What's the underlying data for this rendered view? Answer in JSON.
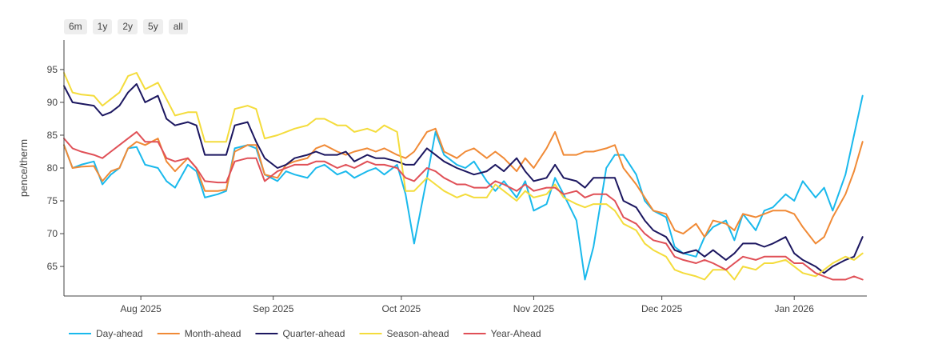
{
  "range_selector": [
    "6m",
    "1y",
    "2y",
    "5y",
    "all"
  ],
  "chart_data": {
    "type": "line",
    "ylabel": "pence/therm",
    "ylim": [
      60.5,
      99.5
    ],
    "yticks": [
      65,
      70,
      75,
      80,
      85,
      90,
      95
    ],
    "xlim": [
      "2025-07-14",
      "2026-01-18"
    ],
    "xticks": [
      {
        "date": "2025-08-01",
        "label": "Aug 2025"
      },
      {
        "date": "2025-09-01",
        "label": "Sep 2025"
      },
      {
        "date": "2025-10-01",
        "label": "Oct 2025"
      },
      {
        "date": "2025-11-01",
        "label": "Nov 2025"
      },
      {
        "date": "2025-12-01",
        "label": "Dec 2025"
      },
      {
        "date": "2026-01-01",
        "label": "Jan 2026"
      }
    ],
    "colors": {
      "Day-ahead": "#1ab9ec",
      "Month-ahead": "#f08a36",
      "Quarter-ahead": "#1c1760",
      "Season-ahead": "#f4dc3c",
      "Year-Ahead": "#e05057"
    },
    "x": [
      "2025-07-14",
      "2025-07-16",
      "2025-07-18",
      "2025-07-21",
      "2025-07-23",
      "2025-07-25",
      "2025-07-27",
      "2025-07-29",
      "2025-07-31",
      "2025-08-02",
      "2025-08-05",
      "2025-08-07",
      "2025-08-09",
      "2025-08-12",
      "2025-08-14",
      "2025-08-16",
      "2025-08-19",
      "2025-08-21",
      "2025-08-23",
      "2025-08-26",
      "2025-08-28",
      "2025-08-30",
      "2025-09-02",
      "2025-09-04",
      "2025-09-06",
      "2025-09-09",
      "2025-09-11",
      "2025-09-13",
      "2025-09-16",
      "2025-09-18",
      "2025-09-20",
      "2025-09-23",
      "2025-09-25",
      "2025-09-27",
      "2025-09-30",
      "2025-10-02",
      "2025-10-04",
      "2025-10-07",
      "2025-10-09",
      "2025-10-11",
      "2025-10-14",
      "2025-10-16",
      "2025-10-18",
      "2025-10-21",
      "2025-10-23",
      "2025-10-25",
      "2025-10-28",
      "2025-10-30",
      "2025-11-01",
      "2025-11-04",
      "2025-11-06",
      "2025-11-08",
      "2025-11-11",
      "2025-11-13",
      "2025-11-15",
      "2025-11-18",
      "2025-11-20",
      "2025-11-22",
      "2025-11-25",
      "2025-11-27",
      "2025-11-29",
      "2025-12-02",
      "2025-12-04",
      "2025-12-06",
      "2025-12-09",
      "2025-12-11",
      "2025-12-13",
      "2025-12-16",
      "2025-12-18",
      "2025-12-20",
      "2025-12-23",
      "2025-12-25",
      "2025-12-27",
      "2025-12-30",
      "2026-01-01",
      "2026-01-03",
      "2026-01-06",
      "2026-01-08",
      "2026-01-10",
      "2026-01-13",
      "2026-01-15",
      "2026-01-17"
    ],
    "series": [
      {
        "name": "Day-ahead",
        "values": [
          83.5,
          80.0,
          80.5,
          81.0,
          77.5,
          79.0,
          80.0,
          83.0,
          83.2,
          80.5,
          80.0,
          78.0,
          77.0,
          80.5,
          79.5,
          75.5,
          76.0,
          76.5,
          83.0,
          83.5,
          83.0,
          79.0,
          78.0,
          79.5,
          79.0,
          78.5,
          80.0,
          80.5,
          79.0,
          79.5,
          78.5,
          79.5,
          80.0,
          79.0,
          80.5,
          76.0,
          68.5,
          78.5,
          85.5,
          82.0,
          80.5,
          80.0,
          81.0,
          78.0,
          76.5,
          78.0,
          75.5,
          78.0,
          73.5,
          74.5,
          78.5,
          76.0,
          72.0,
          63.0,
          68.0,
          80.0,
          82.0,
          82.0,
          79.0,
          75.0,
          73.5,
          72.5,
          68.0,
          67.0,
          66.5,
          69.5,
          71.0,
          72.0,
          69.0,
          73.0,
          70.5,
          73.5,
          74.0,
          76.0,
          75.0,
          78.0,
          75.5,
          77.0,
          73.5,
          79.0,
          85.0,
          91.0
        ]
      },
      {
        "name": "Month-ahead",
        "values": [
          83.5,
          80.0,
          80.2,
          80.3,
          78.0,
          79.5,
          80.0,
          83.0,
          84.0,
          83.5,
          84.5,
          81.0,
          79.5,
          81.5,
          80.0,
          76.5,
          76.5,
          76.7,
          82.5,
          83.5,
          83.5,
          79.0,
          78.5,
          80.5,
          81.0,
          81.5,
          83.0,
          83.5,
          82.5,
          82.0,
          82.5,
          83.0,
          82.5,
          83.0,
          82.0,
          81.5,
          82.5,
          85.5,
          86.0,
          82.5,
          81.5,
          82.5,
          83.0,
          81.5,
          82.5,
          81.5,
          79.5,
          81.5,
          80.0,
          83.0,
          85.5,
          82.0,
          82.0,
          82.5,
          82.5,
          83.0,
          83.5,
          80.0,
          77.5,
          75.5,
          73.5,
          73.0,
          70.5,
          70.0,
          71.5,
          69.5,
          72.0,
          71.5,
          70.5,
          73.0,
          72.5,
          73.0,
          73.5,
          73.5,
          73.0,
          71.0,
          68.5,
          69.5,
          72.5,
          76.0,
          79.5,
          84.0
        ]
      },
      {
        "name": "Quarter-ahead",
        "values": [
          92.5,
          90.0,
          89.8,
          89.5,
          88.0,
          88.5,
          89.5,
          91.5,
          92.8,
          90.0,
          91.0,
          87.5,
          86.5,
          87.0,
          86.5,
          82.0,
          82.0,
          82.0,
          86.5,
          87.0,
          84.0,
          81.5,
          80.0,
          80.5,
          81.5,
          82.0,
          82.5,
          82.0,
          82.0,
          82.5,
          81.0,
          82.0,
          81.5,
          81.5,
          81.0,
          80.5,
          80.5,
          83.0,
          82.0,
          81.0,
          80.0,
          79.5,
          79.0,
          79.5,
          80.5,
          79.5,
          81.5,
          79.5,
          78.0,
          78.5,
          80.5,
          78.5,
          78.0,
          77.0,
          78.5,
          78.5,
          78.5,
          75.0,
          74.0,
          72.0,
          70.5,
          69.5,
          67.5,
          67.0,
          67.5,
          66.5,
          67.5,
          66.0,
          67.0,
          68.5,
          68.5,
          68.0,
          68.5,
          69.5,
          67.0,
          66.0,
          65.0,
          64.0,
          65.0,
          66.0,
          66.5,
          69.5
        ]
      },
      {
        "name": "Season-ahead",
        "values": [
          94.5,
          91.5,
          91.2,
          91.0,
          89.5,
          90.5,
          91.5,
          94.0,
          94.5,
          92.0,
          93.0,
          90.5,
          88.0,
          88.5,
          88.5,
          84.0,
          84.0,
          84.0,
          89.0,
          89.5,
          89.0,
          84.5,
          85.0,
          85.5,
          86.0,
          86.5,
          87.5,
          87.5,
          86.5,
          86.5,
          85.5,
          86.0,
          85.5,
          86.5,
          85.5,
          76.5,
          76.5,
          78.5,
          77.5,
          76.5,
          75.5,
          76.0,
          75.5,
          75.5,
          77.5,
          76.5,
          75.0,
          76.5,
          75.5,
          76.0,
          77.5,
          75.5,
          74.5,
          74.0,
          74.5,
          74.5,
          73.5,
          71.5,
          70.5,
          68.5,
          67.5,
          66.5,
          64.5,
          64.0,
          63.5,
          63.0,
          64.5,
          64.5,
          63.0,
          65.0,
          64.5,
          65.5,
          65.5,
          66.0,
          65.0,
          64.0,
          63.5,
          64.5,
          65.5,
          66.5,
          66.0,
          67.0
        ]
      },
      {
        "name": "Year-Ahead",
        "values": [
          84.5,
          83.0,
          82.5,
          82.0,
          81.5,
          82.5,
          83.5,
          84.5,
          85.5,
          84.0,
          84.0,
          81.5,
          81.0,
          81.5,
          80.0,
          78.0,
          77.8,
          77.8,
          81.0,
          81.5,
          81.5,
          78.0,
          79.5,
          80.0,
          80.5,
          80.5,
          81.0,
          81.0,
          80.0,
          80.5,
          80.0,
          81.0,
          80.5,
          80.5,
          80.0,
          78.5,
          78.0,
          80.0,
          79.5,
          78.5,
          77.5,
          77.5,
          77.0,
          77.0,
          78.0,
          77.5,
          76.5,
          77.5,
          76.5,
          77.0,
          77.0,
          76.0,
          76.5,
          75.5,
          76.0,
          76.0,
          75.0,
          72.5,
          71.5,
          70.0,
          69.0,
          68.5,
          66.5,
          66.0,
          65.5,
          66.0,
          65.5,
          64.5,
          65.5,
          66.5,
          66.0,
          66.5,
          66.5,
          66.5,
          65.5,
          65.5,
          64.0,
          63.5,
          63.0,
          63.0,
          63.5,
          63.0
        ]
      }
    ]
  }
}
